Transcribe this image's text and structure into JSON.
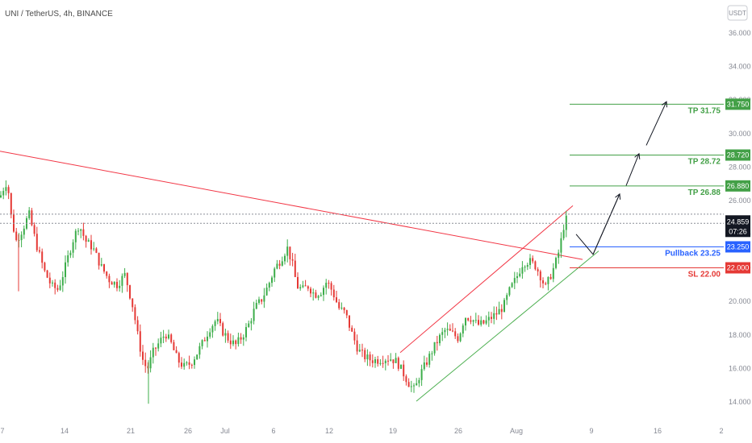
{
  "header": {
    "symbol_title": "UNI / TetherUS, 4h, BINANCE",
    "currency_button": "USDT"
  },
  "colors": {
    "bull": "#26a69a",
    "bull_candle": "#3cad4a",
    "bear": "#e53935",
    "tp_green": "#43a047",
    "pullback_blue": "#2962ff",
    "sl_red": "#e53935",
    "resistance_red": "#f23645",
    "support_green": "#4caf50",
    "current_badge": "#131722"
  },
  "current_price": {
    "value": "24.859",
    "countdown": "07:26"
  },
  "chart_data": {
    "type": "candlestick",
    "title": "UNI / TetherUS, 4h, BINANCE",
    "ylim": [
      13.0,
      37.0
    ],
    "y_ticks": [
      14.0,
      16.0,
      18.0,
      20.0,
      22.0,
      24.0,
      26.0,
      28.0,
      30.0,
      32.0,
      34.0,
      36.0
    ],
    "y_tick_labels": [
      "14.000",
      "16.000",
      "18.000",
      "20.000",
      "22.000",
      "24.000",
      "26.000",
      "28.000",
      "30.000",
      "32.000",
      "34.000",
      "36.000"
    ],
    "x_ticks": [
      "7",
      "14",
      "21",
      "26",
      "Jul",
      "6",
      "12",
      "19",
      "26",
      "Aug",
      "9",
      "16",
      "2"
    ],
    "levels": [
      {
        "name": "TP 31.75",
        "value": 31.75,
        "badge": "31.750",
        "kind": "tp"
      },
      {
        "name": "TP 28.72",
        "value": 28.72,
        "badge": "28.720",
        "kind": "tp"
      },
      {
        "name": "TP 26.88",
        "value": 26.88,
        "badge": "26.880",
        "kind": "tp"
      },
      {
        "name": "Pullback 23.25",
        "value": 23.25,
        "badge": "23.250",
        "kind": "pullback"
      },
      {
        "name": "SL 22.00",
        "value": 22.0,
        "badge": "22.000",
        "kind": "sl"
      }
    ],
    "price_path": [
      [
        0,
        26.2
      ],
      [
        4,
        26.7
      ],
      [
        9,
        27.2
      ],
      [
        14,
        25.0
      ],
      [
        20,
        23.6
      ],
      [
        28,
        24.3
      ],
      [
        36,
        25.2
      ],
      [
        45,
        23.4
      ],
      [
        55,
        21.8
      ],
      [
        64,
        20.9
      ],
      [
        72,
        20.7
      ],
      [
        80,
        21.9
      ],
      [
        90,
        23.6
      ],
      [
        98,
        24.6
      ],
      [
        106,
        23.6
      ],
      [
        115,
        23.2
      ],
      [
        125,
        22.1
      ],
      [
        135,
        21.3
      ],
      [
        145,
        21.0
      ],
      [
        155,
        21.6
      ],
      [
        165,
        19.6
      ],
      [
        172,
        17.6
      ],
      [
        178,
        16.3
      ],
      [
        183,
        16.0
      ],
      [
        190,
        17.0
      ],
      [
        198,
        17.6
      ],
      [
        205,
        18.1
      ],
      [
        212,
        17.5
      ],
      [
        220,
        16.5
      ],
      [
        228,
        16.1
      ],
      [
        236,
        16.3
      ],
      [
        244,
        16.9
      ],
      [
        252,
        17.6
      ],
      [
        260,
        18.4
      ],
      [
        268,
        18.9
      ],
      [
        276,
        18.2
      ],
      [
        284,
        17.7
      ],
      [
        292,
        17.4
      ],
      [
        300,
        17.9
      ],
      [
        308,
        18.6
      ],
      [
        316,
        19.6
      ],
      [
        324,
        20.1
      ],
      [
        332,
        20.9
      ],
      [
        340,
        21.9
      ],
      [
        348,
        22.5
      ],
      [
        356,
        23.2
      ],
      [
        362,
        22.3
      ],
      [
        368,
        20.9
      ],
      [
        375,
        20.7
      ],
      [
        382,
        20.9
      ],
      [
        390,
        20.4
      ],
      [
        398,
        20.6
      ],
      [
        405,
        21.2
      ],
      [
        412,
        20.6
      ],
      [
        420,
        19.6
      ],
      [
        428,
        19.3
      ],
      [
        436,
        18.1
      ],
      [
        444,
        17.1
      ],
      [
        452,
        16.7
      ],
      [
        460,
        16.5
      ],
      [
        468,
        16.5
      ],
      [
        476,
        16.6
      ],
      [
        484,
        16.6
      ],
      [
        492,
        16.4
      ],
      [
        500,
        15.7
      ],
      [
        508,
        15.0
      ],
      [
        514,
        14.7
      ],
      [
        520,
        15.6
      ],
      [
        528,
        16.3
      ],
      [
        536,
        17.1
      ],
      [
        544,
        17.8
      ],
      [
        552,
        18.3
      ],
      [
        560,
        18.1
      ],
      [
        568,
        17.8
      ],
      [
        576,
        19.1
      ],
      [
        584,
        19.0
      ],
      [
        592,
        18.6
      ],
      [
        600,
        18.7
      ],
      [
        608,
        19.0
      ],
      [
        616,
        19.3
      ],
      [
        624,
        19.7
      ],
      [
        632,
        20.7
      ],
      [
        640,
        21.4
      ],
      [
        648,
        22.3
      ],
      [
        656,
        22.4
      ],
      [
        664,
        22.1
      ],
      [
        670,
        21.5
      ],
      [
        676,
        20.8
      ],
      [
        682,
        21.5
      ],
      [
        688,
        22.2
      ],
      [
        694,
        23.2
      ],
      [
        698,
        24.4
      ],
      [
        702,
        24.9
      ],
      [
        706,
        24.85
      ]
    ]
  }
}
